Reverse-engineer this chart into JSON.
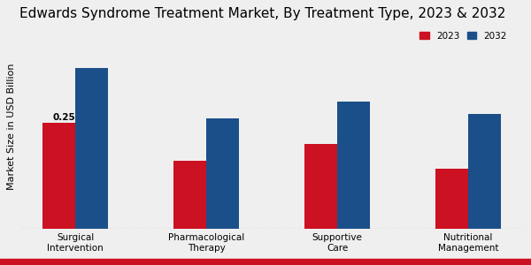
{
  "title": "Edwards Syndrome Treatment Market, By Treatment Type, 2023 & 2032",
  "ylabel": "Market Size in USD Billion",
  "categories": [
    "Surgical\nIntervention",
    "Pharmacological\nTherapy",
    "Supportive\nCare",
    "Nutritional\nManagement"
  ],
  "values_2023": [
    0.25,
    0.16,
    0.2,
    0.14
  ],
  "values_2032": [
    0.38,
    0.26,
    0.3,
    0.27
  ],
  "color_2023": "#cc1122",
  "color_2032": "#1a4f8a",
  "annotation_value": "0.25",
  "annotation_bar_index": 0,
  "bar_width": 0.25,
  "background_color": "#f0f0f0",
  "title_fontsize": 11,
  "axis_label_fontsize": 8,
  "tick_fontsize": 7.5,
  "legend_labels": [
    "2023",
    "2032"
  ],
  "ylim": [
    0,
    0.48
  ]
}
